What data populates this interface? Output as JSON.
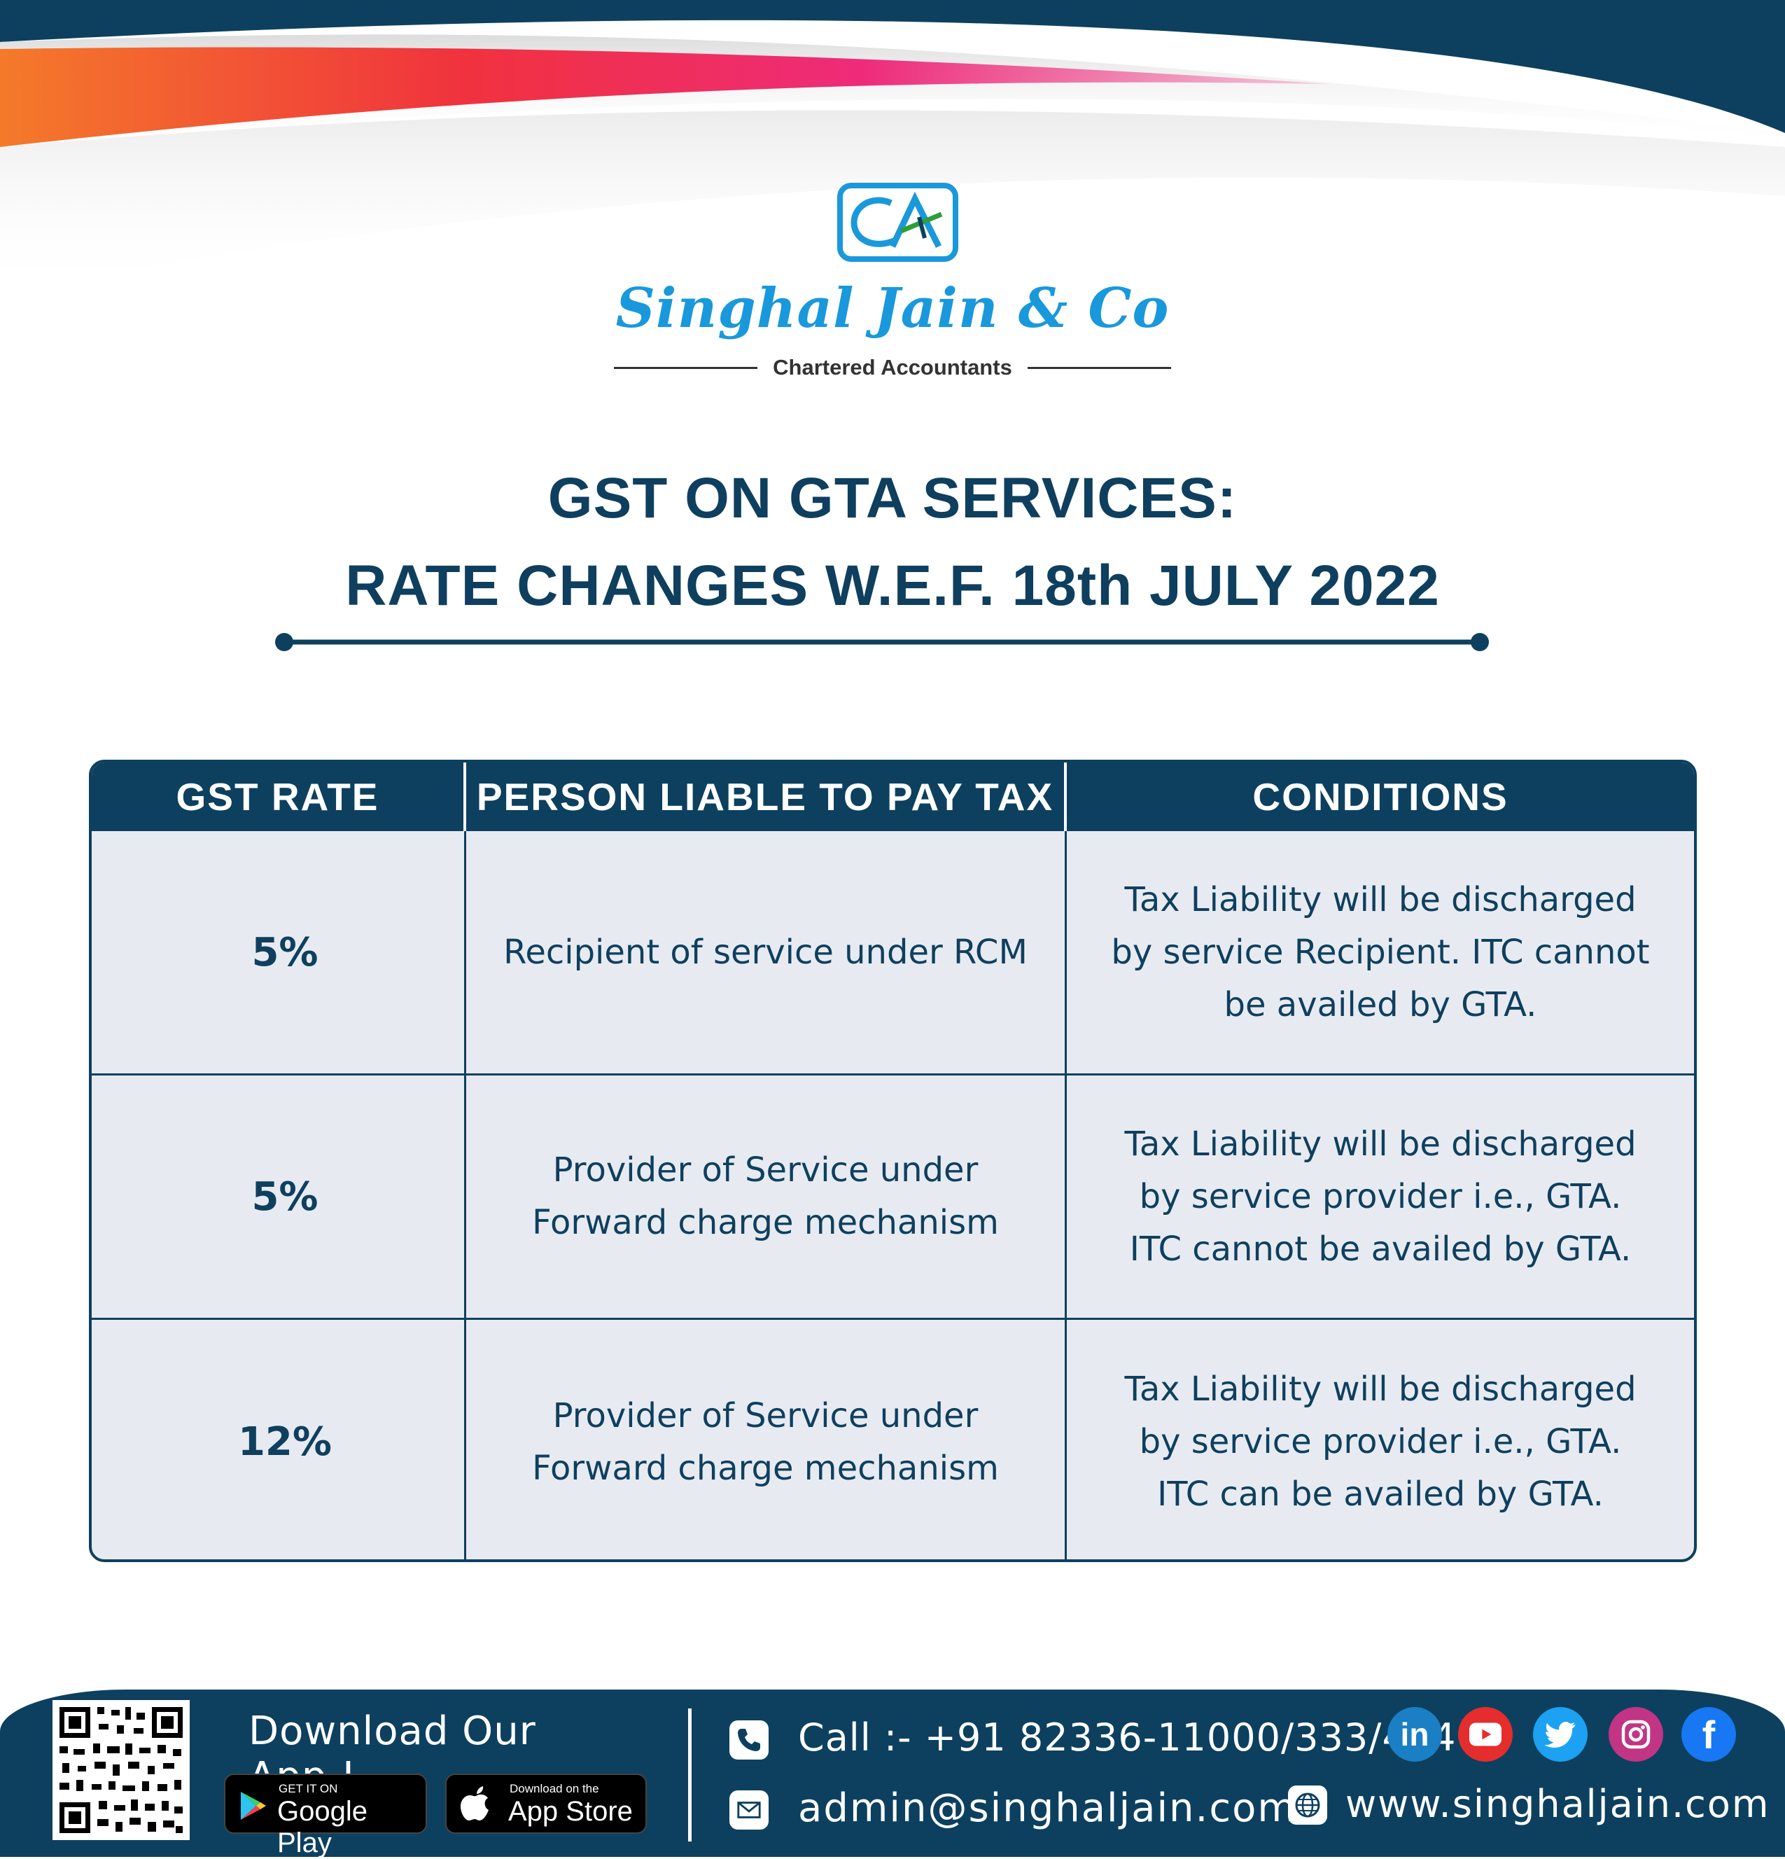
{
  "brand": {
    "logo_text": "CA",
    "firm_name": "Singhal Jain & Co",
    "tagline": "Chartered Accountants"
  },
  "title": {
    "line1": "GST ON GTA SERVICES:",
    "line2": "RATE CHANGES W.E.F. 18th JULY 2022"
  },
  "table": {
    "headers": [
      "GST RATE",
      "PERSON LIABLE TO PAY TAX",
      "CONDITIONS"
    ],
    "rows": [
      {
        "rate": "5%",
        "person": [
          "Recipient of service under RCM"
        ],
        "conditions": [
          "Tax Liability will be discharged",
          "by service Recipient. ITC cannot",
          "be availed by GTA."
        ]
      },
      {
        "rate": "5%",
        "person": [
          "Provider of Service under",
          "Forward charge mechanism"
        ],
        "conditions": [
          "Tax Liability will be discharged",
          "by service provider i.e., GTA.",
          "ITC cannot be availed by GTA."
        ]
      },
      {
        "rate": "12%",
        "person": [
          "Provider of Service under",
          "Forward charge mechanism"
        ],
        "conditions": [
          "Tax Liability will be discharged",
          "by service provider i.e., GTA.",
          "ITC can be availed by GTA."
        ]
      }
    ]
  },
  "footer": {
    "download_title": "Download Our App !",
    "google_small": "GET IT ON",
    "google_big": "Google Play",
    "apple_small": "Download on the",
    "apple_big": "App Store",
    "phone": "Call :- +91 82336-11000/333/444",
    "email": "admin@singhaljain.com",
    "website": "www.singhaljain.com",
    "social_icons": [
      "linkedin-icon",
      "youtube-icon",
      "twitter-icon",
      "instagram-icon",
      "facebook-icon"
    ]
  },
  "colors": {
    "navy": "#0d405f",
    "brand_blue": "#1a98dc",
    "table_bg": "#e7ebf1",
    "swoosh_red": "#f0323e",
    "swoosh_orange": "#f47a2a",
    "swoosh_pink": "#ee2b7a"
  }
}
